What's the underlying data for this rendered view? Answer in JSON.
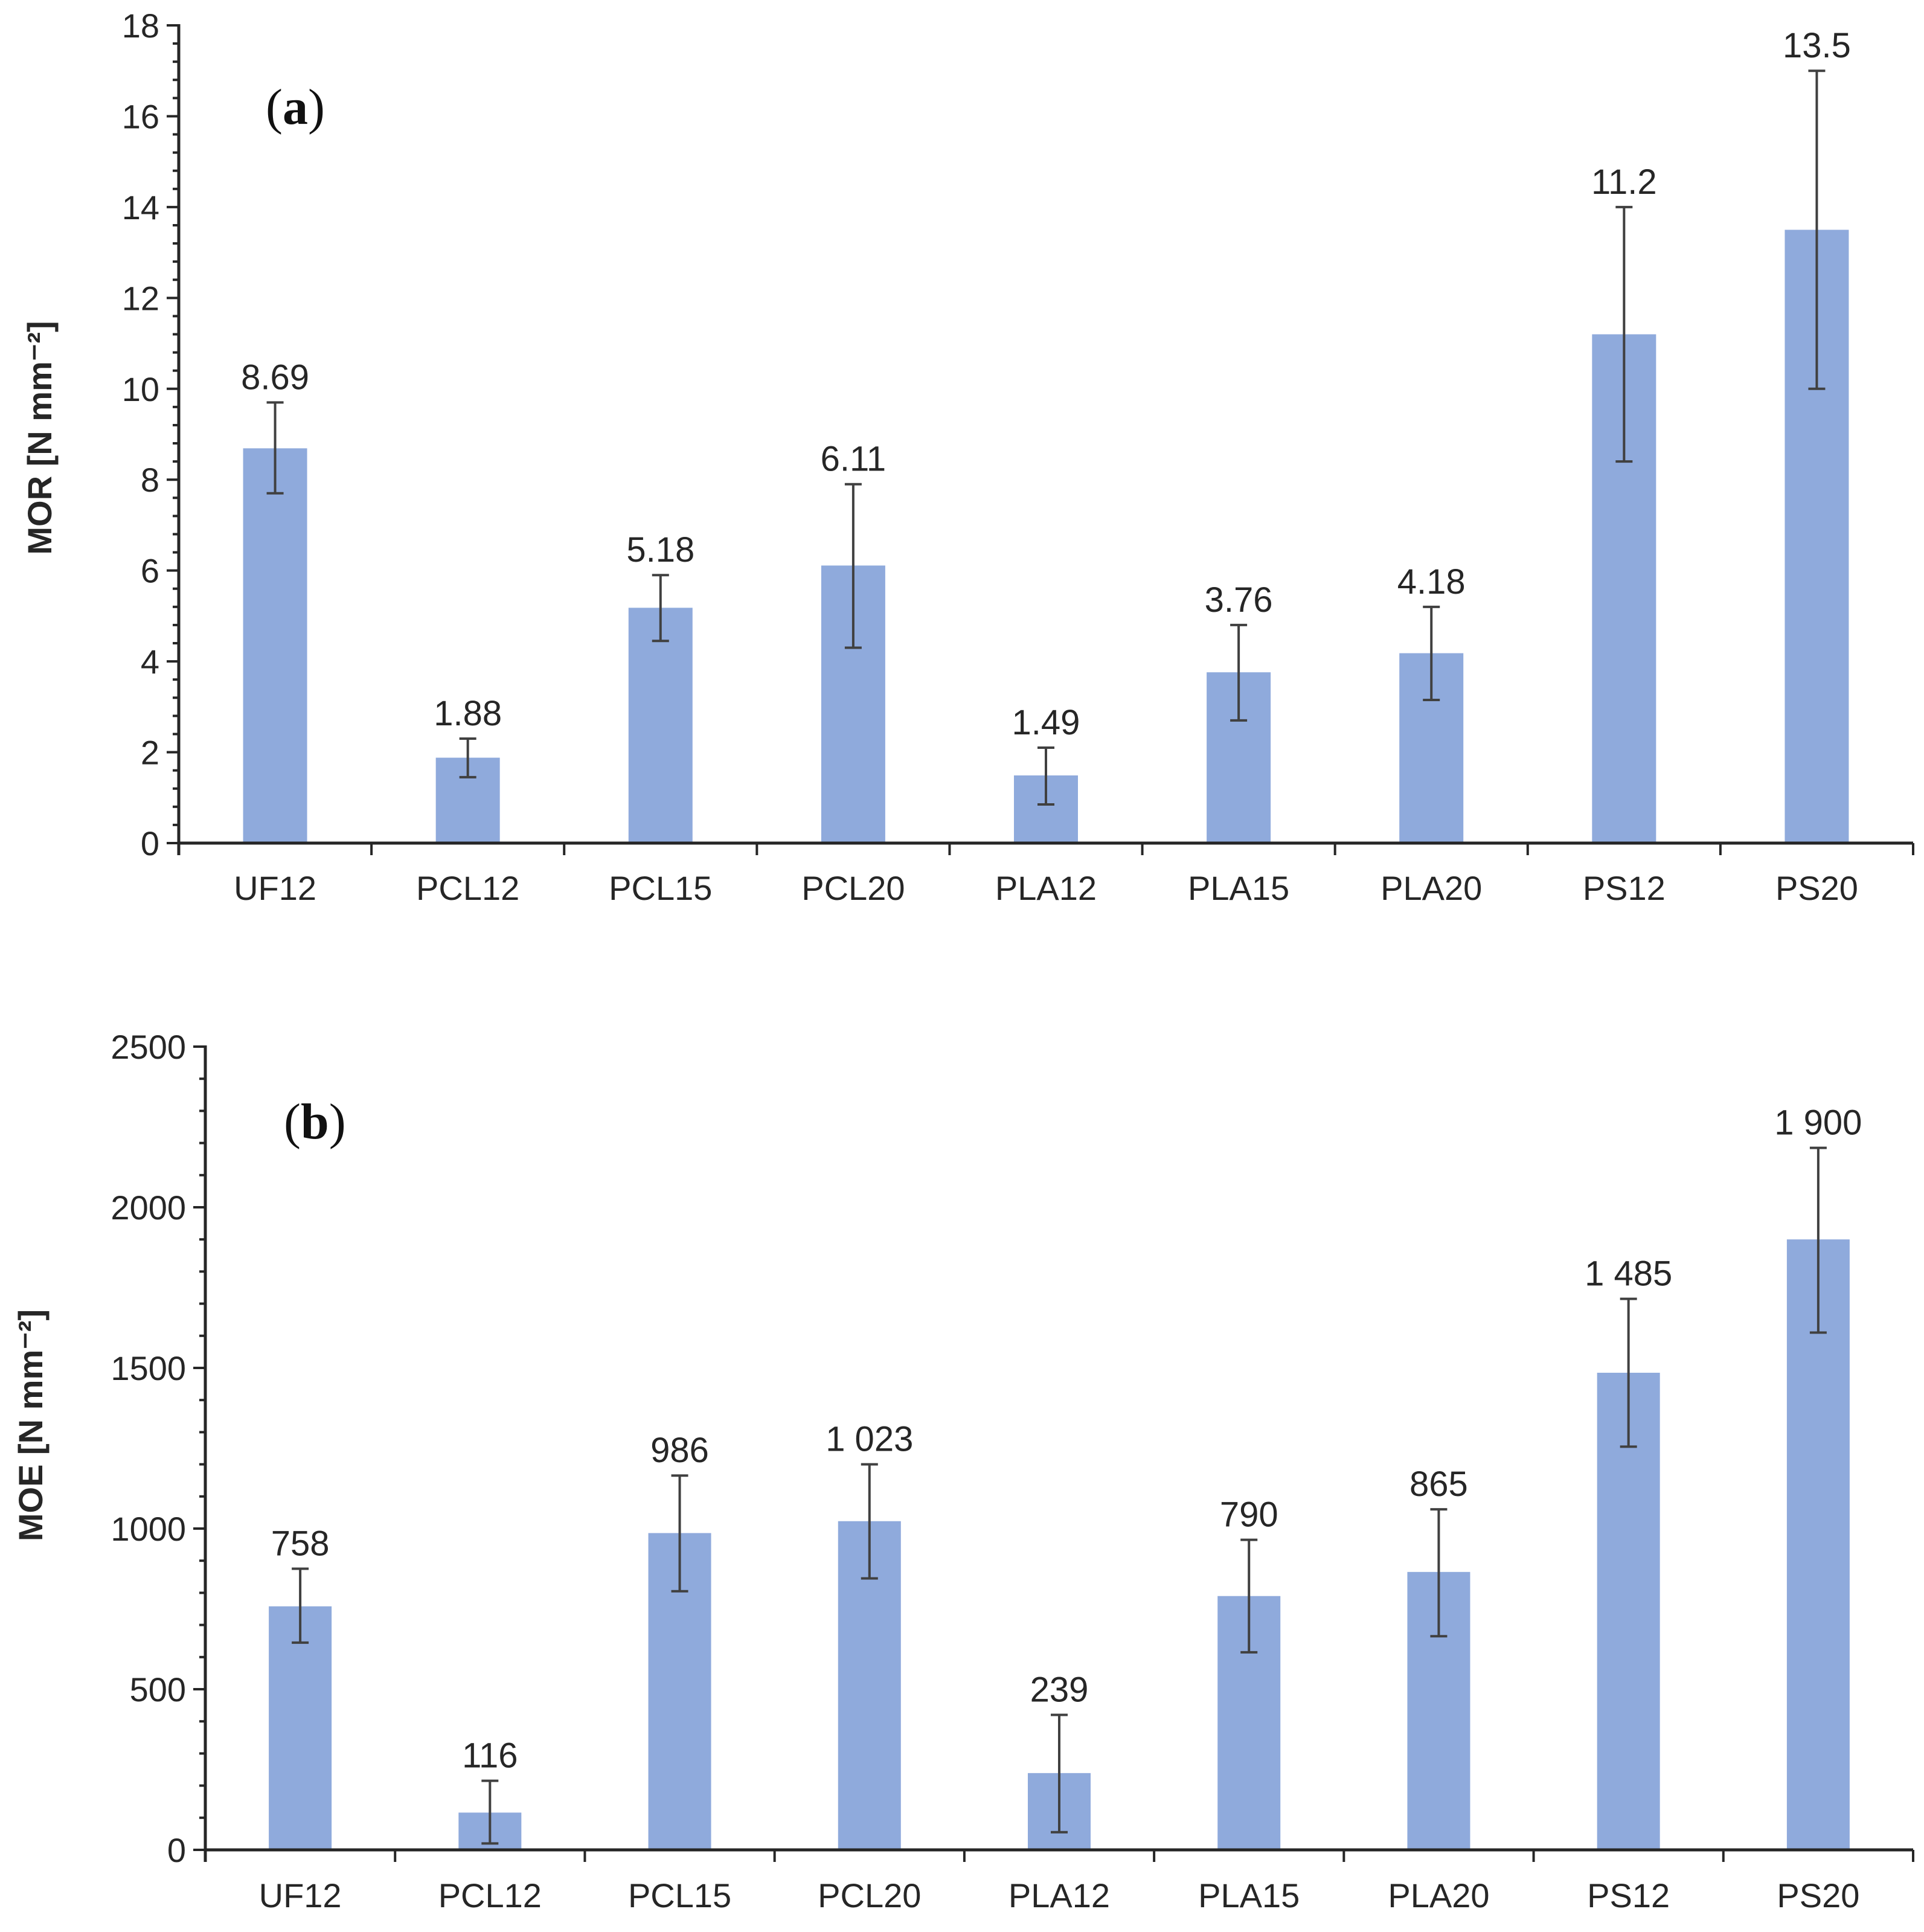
{
  "colors": {
    "bar": "#8faadc",
    "axis": "#262626",
    "error_bar": "#404040",
    "text": "#262626"
  },
  "chart_data": [
    {
      "id": "a",
      "type": "bar",
      "panel_label": "a",
      "title": "",
      "xlabel": "",
      "ylabel": "MOR [N mm⁻²]",
      "ylim": [
        0,
        18
      ],
      "yticks": [
        0,
        2,
        4,
        6,
        8,
        10,
        12,
        14,
        16,
        18
      ],
      "ytick_labels": [
        "0",
        "2",
        "4",
        "6",
        "8",
        "10",
        "12",
        "14",
        "16",
        "18"
      ],
      "grid": false,
      "categories": [
        "UF12",
        "PCL12",
        "PCL15",
        "PCL20",
        "PLA12",
        "PLA15",
        "PLA20",
        "PS12",
        "PS20"
      ],
      "values": [
        8.69,
        1.88,
        5.18,
        6.11,
        1.49,
        3.76,
        4.18,
        11.2,
        13.5
      ],
      "value_labels": [
        "8.69",
        "1.88",
        "5.18",
        "6.11",
        "1.49",
        "3.76",
        "4.18",
        "11.2",
        "13.5"
      ],
      "error_low": [
        7.7,
        1.45,
        4.45,
        4.3,
        0.85,
        2.7,
        3.15,
        8.4,
        10.0
      ],
      "error_high": [
        9.7,
        2.3,
        5.9,
        7.9,
        2.1,
        4.8,
        5.2,
        14.0,
        17.0
      ]
    },
    {
      "id": "b",
      "type": "bar",
      "panel_label": "b",
      "title": "",
      "xlabel": "",
      "ylabel": "MOE [N mm⁻²]",
      "ylim": [
        0,
        2500
      ],
      "yticks": [
        0,
        500,
        1000,
        1500,
        2000,
        2500
      ],
      "ytick_labels": [
        "0",
        "500",
        "1000",
        "1500",
        "2000",
        "2500"
      ],
      "grid": false,
      "categories": [
        "UF12",
        "PCL12",
        "PCL15",
        "PCL20",
        "PLA12",
        "PLA15",
        "PLA20",
        "PS12",
        "PS20"
      ],
      "values": [
        758,
        116,
        986,
        1023,
        239,
        790,
        865,
        1485,
        1900
      ],
      "value_labels": [
        "758",
        "116",
        "986",
        "1 023",
        "239",
        "790",
        "865",
        "1 485",
        "1 900"
      ],
      "error_low": [
        645,
        20,
        805,
        845,
        55,
        615,
        665,
        1255,
        1610
      ],
      "error_high": [
        875,
        215,
        1165,
        1200,
        420,
        965,
        1060,
        1715,
        2185
      ]
    }
  ]
}
